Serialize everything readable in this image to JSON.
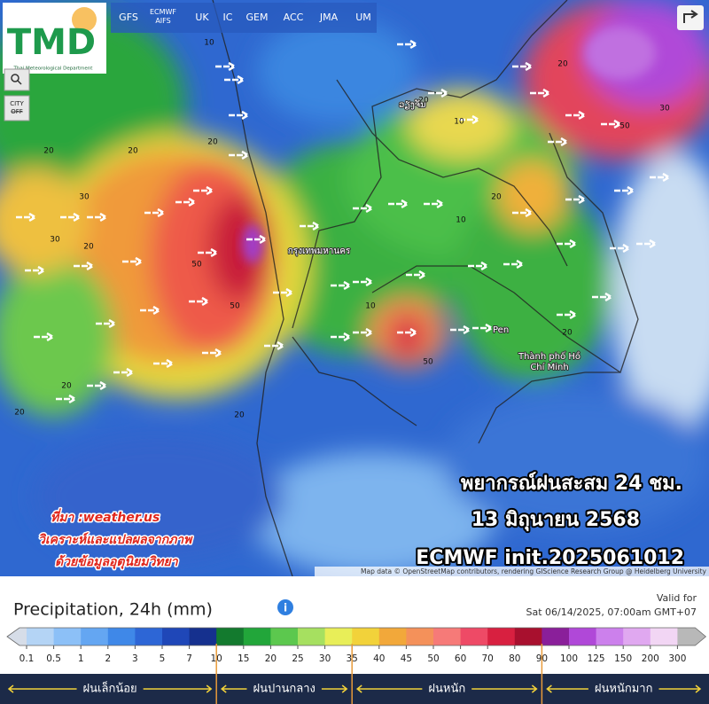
{
  "header": {
    "logo": "TMD",
    "logo_subtitle": "Thai Meteorological Department",
    "models": [
      "GFS",
      "ECMWF AIFS",
      "UK",
      "IC",
      "GEM",
      "ACC",
      "JMA",
      "UM"
    ],
    "city_toggle": "CITY OFF"
  },
  "map": {
    "places": [
      "ວຽງຈັນ",
      "กรุงเทพมหานคร",
      "Pen",
      "Thành phố Hồ Chí Minh"
    ],
    "contour_labels": [
      10,
      20,
      20,
      30,
      30,
      20,
      20,
      50,
      50,
      20,
      20,
      20,
      20,
      50,
      30,
      20,
      10,
      10,
      20,
      50,
      10,
      20
    ],
    "overlay": {
      "title": "พยากรณ์ฝนสะสม 24 ชม.",
      "date": "13 มิถุนายน 2568",
      "run": "ECMWF init.2025061012"
    },
    "source": [
      "ที่มา :weather.us",
      "วิเคราะห์และแปลผลจากภาพ",
      "ด้วยข้อมูลอุตุนิยมวิทยา"
    ],
    "attribution": "Map data © OpenStreetMap contributors, rendering GIScience Research Group @ Heidelberg University"
  },
  "legend": {
    "title": "Precipitation, 24h (mm)",
    "valid_label": "Valid for",
    "valid_time": "Sat 06/14/2025, 07:00am GMT+07",
    "ticks": [
      0.1,
      0.5,
      1,
      2,
      3,
      5,
      7,
      10,
      15,
      20,
      25,
      30,
      35,
      40,
      45,
      50,
      60,
      70,
      80,
      90,
      100,
      125,
      150,
      200,
      300
    ],
    "colors": [
      "#d6dde8",
      "#b4d4f5",
      "#8cc0f7",
      "#64a6f2",
      "#3f88e8",
      "#2d66d6",
      "#1f47b8",
      "#15308e",
      "#137a2e",
      "#22a63a",
      "#5cc84e",
      "#a6e060",
      "#e8ee58",
      "#f2d23a",
      "#f2a83a",
      "#f4915a",
      "#f67a78",
      "#ee4a66",
      "#d82040",
      "#a8102e",
      "#8a1f9a",
      "#b048d8",
      "#cc80ec",
      "#e0a8f0",
      "#f2d6f4",
      "#b8b8b8"
    ],
    "classes": [
      "ฝนเล็กน้อย",
      "ฝนปานกลาง",
      "ฝนหนัก",
      "ฝนหนักมาก"
    ]
  }
}
